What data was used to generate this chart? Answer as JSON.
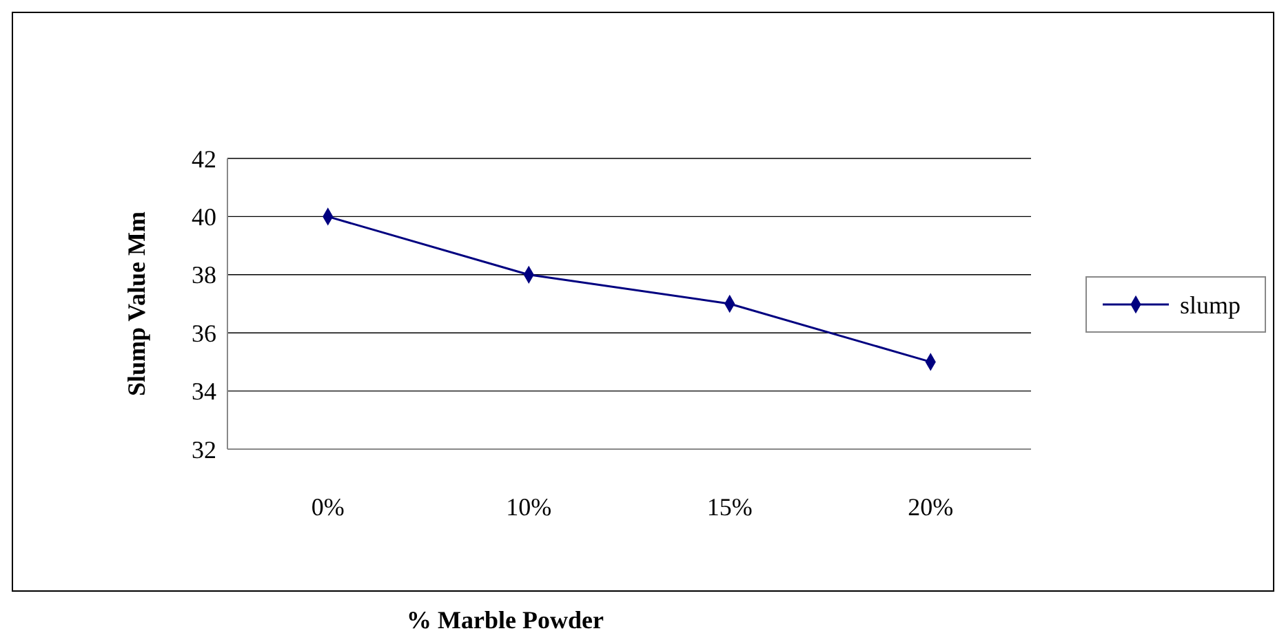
{
  "chart_data": {
    "type": "line",
    "xlabel": "% Marble Powder",
    "ylabel": "Slump Value  Mm",
    "categories": [
      "0%",
      "10%",
      "15%",
      "20%"
    ],
    "series": [
      {
        "name": "slump",
        "color": "#000080",
        "values": [
          40,
          38,
          37,
          35
        ]
      }
    ],
    "ylim": [
      32,
      42
    ],
    "yticks": [
      32,
      34,
      36,
      38,
      40,
      42
    ],
    "grid": "y",
    "legend": "right",
    "marker": "diamond",
    "line_style": "solid"
  }
}
